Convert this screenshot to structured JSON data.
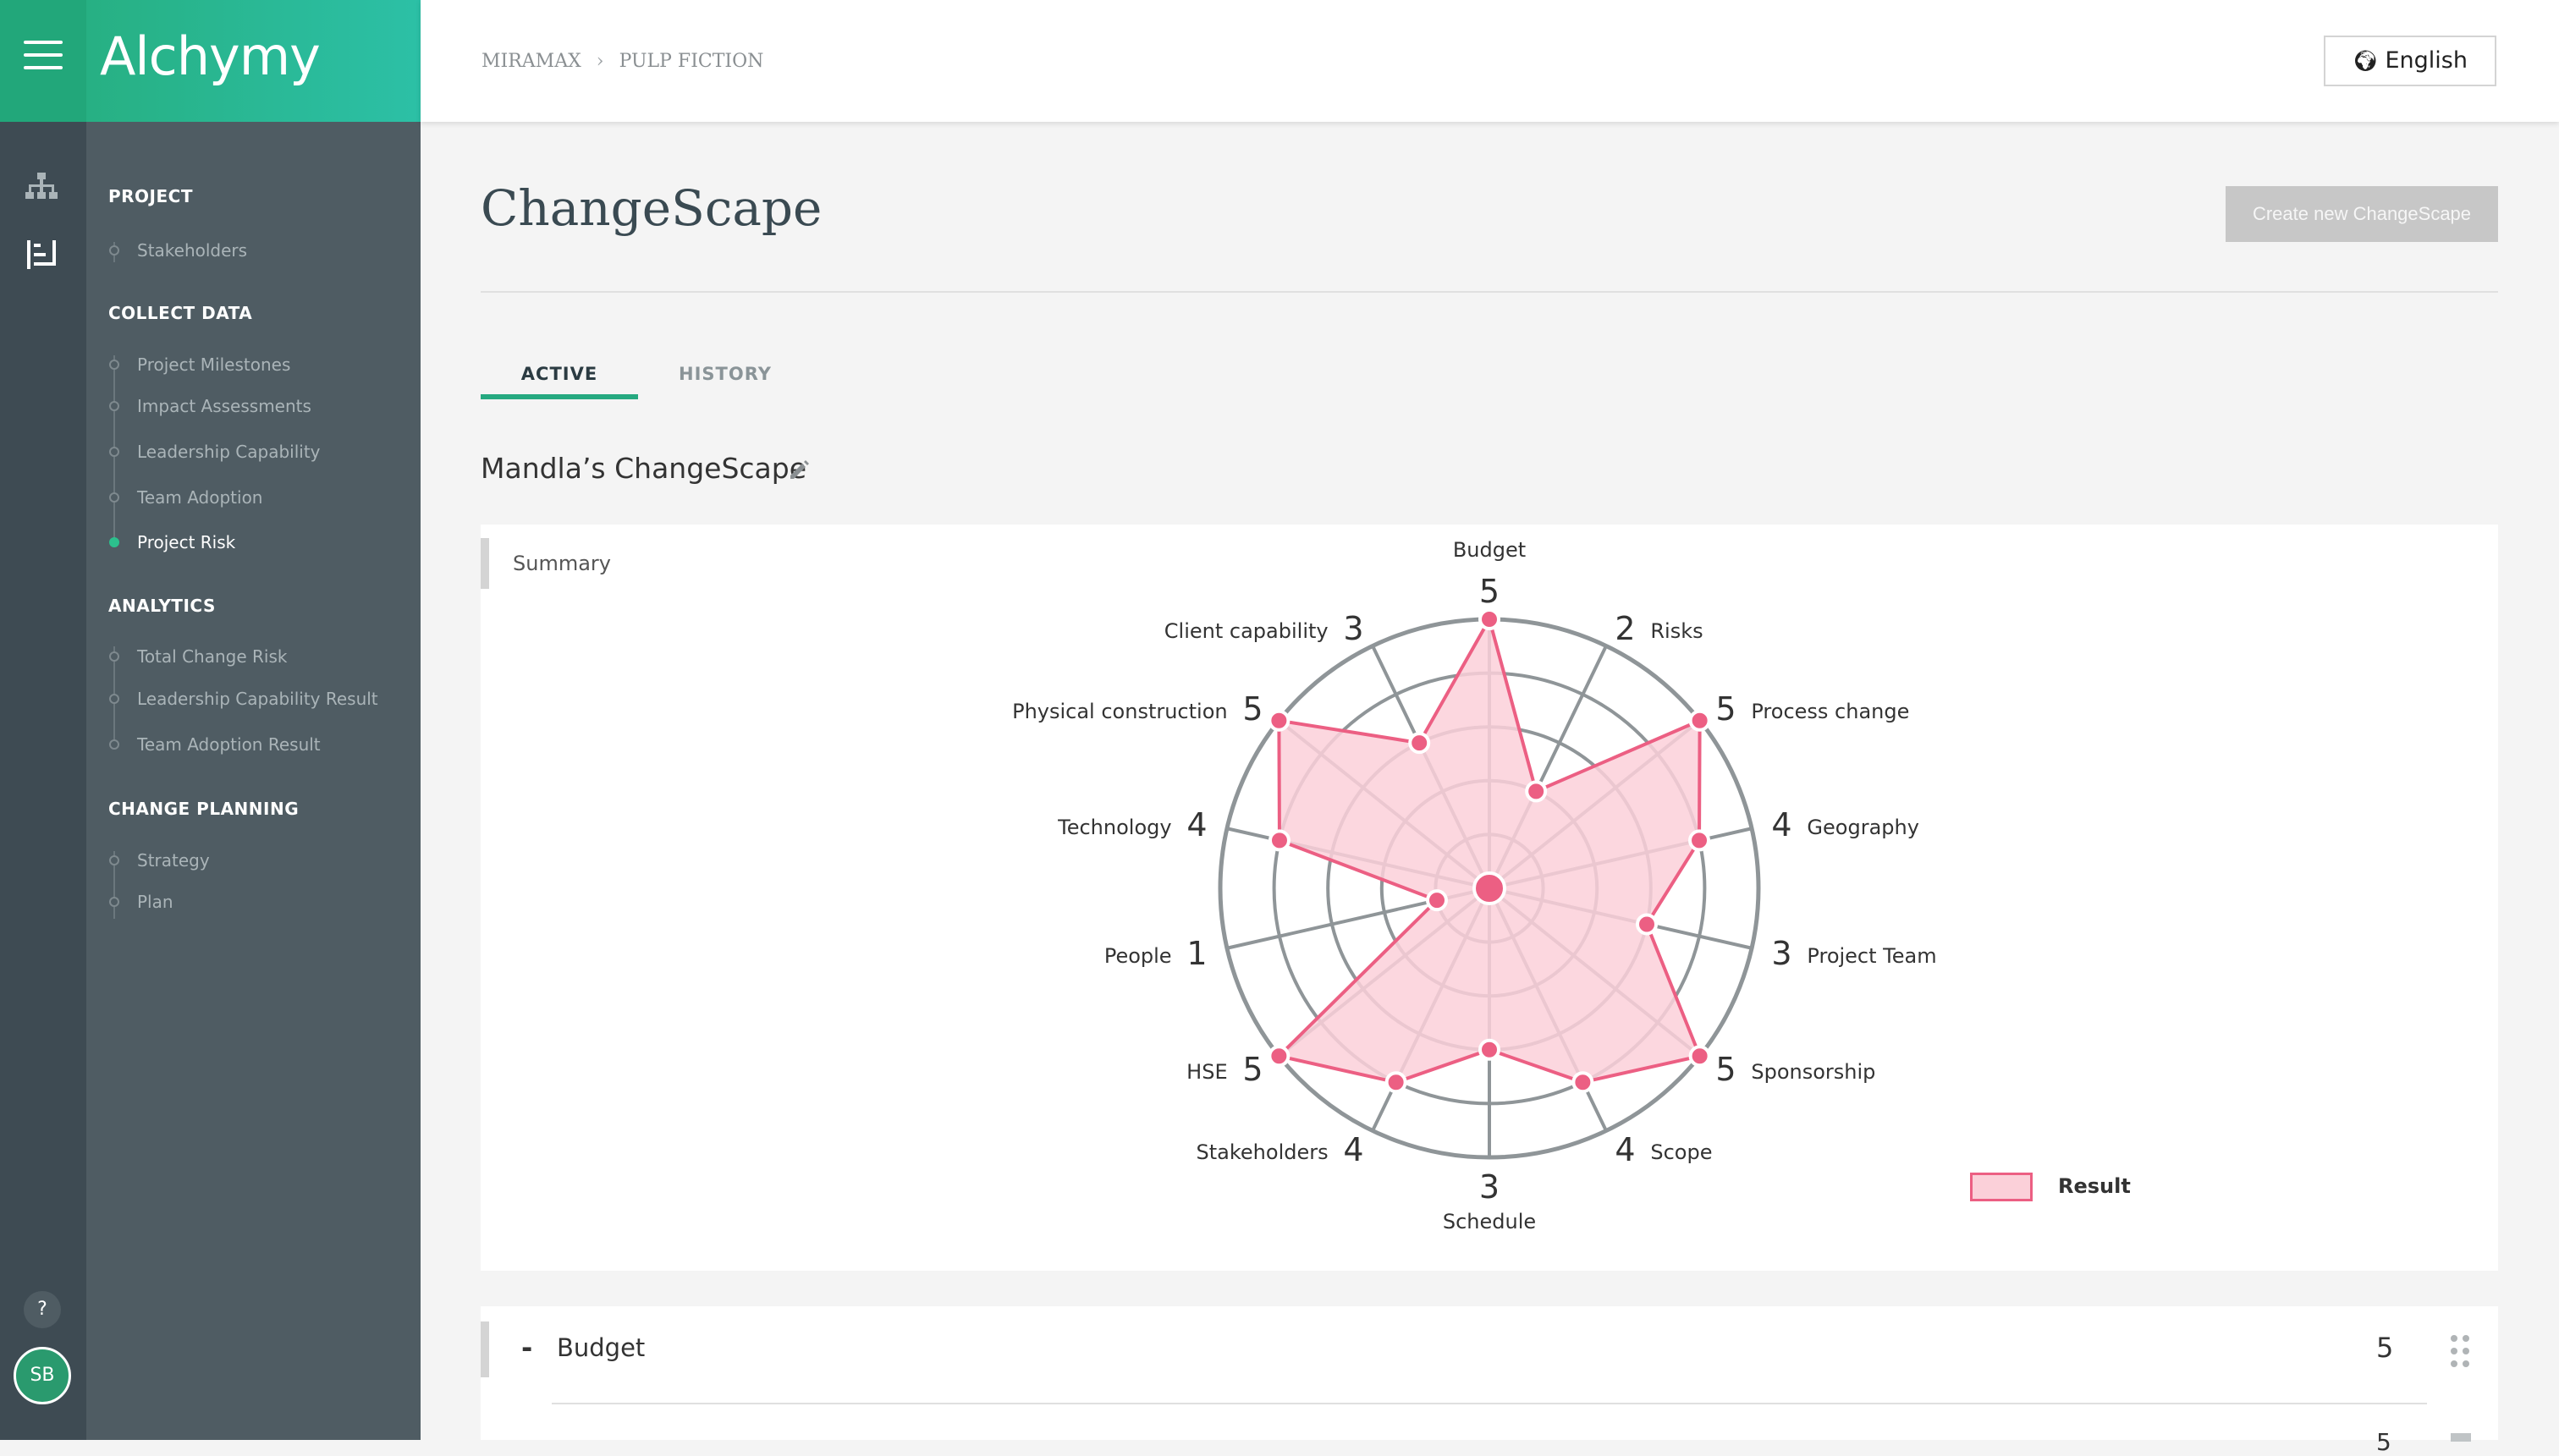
{
  "app": {
    "logo": "Alchymy"
  },
  "header": {
    "breadcrumb": [
      "MIRAMAX",
      "PULP FICTION"
    ],
    "language": "English"
  },
  "sidebar": {
    "sections": [
      {
        "title": "PROJECT",
        "items": [
          {
            "label": "Stakeholders",
            "active": false
          }
        ]
      },
      {
        "title": "COLLECT DATA",
        "items": [
          {
            "label": "Project Milestones",
            "active": false
          },
          {
            "label": "Impact Assessments",
            "active": false
          },
          {
            "label": "Leadership Capability",
            "active": false
          },
          {
            "label": "Team Adoption",
            "active": false
          },
          {
            "label": "Project Risk",
            "active": true
          }
        ]
      },
      {
        "title": "ANALYTICS",
        "items": [
          {
            "label": "Total Change Risk",
            "active": false
          },
          {
            "label": "Leadership Capability Result",
            "active": false
          },
          {
            "label": "Team Adoption Result",
            "active": false
          }
        ]
      },
      {
        "title": "CHANGE PLANNING",
        "items": [
          {
            "label": "Strategy",
            "active": false
          },
          {
            "label": "Plan",
            "active": false
          }
        ]
      }
    ],
    "help": "?",
    "user_initials": "SB"
  },
  "main": {
    "title": "ChangeScape",
    "create_button": "Create new ChangeScape",
    "tabs": [
      {
        "label": "ACTIVE",
        "active": true
      },
      {
        "label": "HISTORY",
        "active": false
      }
    ],
    "changescape_name": "Mandla’s ChangeScape",
    "summary_label": "Summary",
    "legend": "Result",
    "section_row": {
      "toggle": "-",
      "title": "Budget",
      "score": "5",
      "sub_score": "5"
    }
  },
  "chart_data": {
    "type": "radar",
    "max": 5,
    "rings": 5,
    "categories": [
      "Budget",
      "Risks",
      "Process change",
      "Geography",
      "Project Team",
      "Sponsorship",
      "Scope",
      "Schedule",
      "Stakeholders",
      "HSE",
      "People",
      "Technology",
      "Physical construction",
      "Client capability"
    ],
    "values": [
      5,
      2,
      5,
      4,
      3,
      5,
      4,
      3,
      4,
      5,
      1,
      4,
      5,
      3
    ],
    "series": [
      {
        "name": "Result",
        "color": "#ec5f83",
        "fill": "#fbd0d9"
      }
    ]
  }
}
